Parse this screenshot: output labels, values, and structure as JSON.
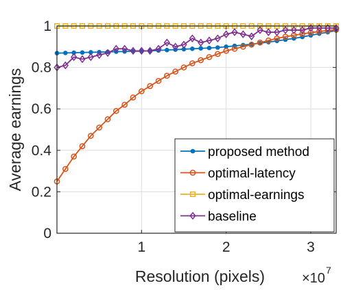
{
  "chart_data": {
    "type": "line",
    "xlabel": "Resolution (pixels)",
    "ylabel": "Average earnings",
    "x_exponent": "×10",
    "x_exponent_power": "7",
    "xlim": [
      0,
      3.3
    ],
    "ylim": [
      0,
      1
    ],
    "xticks": [
      1,
      2,
      3
    ],
    "xtick_labels": [
      "1",
      "2",
      "3"
    ],
    "yticks": [
      0,
      0.2,
      0.4,
      0.6,
      0.8,
      1
    ],
    "ytick_labels": [
      "0",
      "0.2",
      "0.4",
      "0.6",
      "0.8",
      "1"
    ],
    "grid": true,
    "legend_position": "bottom-right",
    "x": [
      0.0,
      0.1,
      0.2,
      0.3,
      0.4,
      0.5,
      0.6,
      0.7,
      0.8,
      0.9,
      1.0,
      1.1,
      1.2,
      1.3,
      1.4,
      1.5,
      1.6,
      1.7,
      1.8,
      1.9,
      2.0,
      2.1,
      2.2,
      2.3,
      2.4,
      2.5,
      2.6,
      2.7,
      2.8,
      2.9,
      3.0,
      3.1,
      3.2,
      3.3
    ],
    "series": [
      {
        "name": "proposed method",
        "color": "#0072BD",
        "marker": "dot",
        "values": [
          0.869,
          0.87,
          0.871,
          0.872,
          0.873,
          0.874,
          0.875,
          0.876,
          0.877,
          0.878,
          0.879,
          0.88,
          0.882,
          0.884,
          0.886,
          0.888,
          0.89,
          0.892,
          0.894,
          0.896,
          0.9,
          0.904,
          0.908,
          0.912,
          0.917,
          0.922,
          0.928,
          0.934,
          0.94,
          0.947,
          0.955,
          0.963,
          0.97,
          0.978
        ]
      },
      {
        "name": "optimal-latency",
        "color": "#D95319",
        "marker": "circle",
        "values": [
          0.25,
          0.31,
          0.37,
          0.42,
          0.47,
          0.51,
          0.55,
          0.59,
          0.62,
          0.655,
          0.685,
          0.71,
          0.735,
          0.76,
          0.78,
          0.8,
          0.82,
          0.835,
          0.85,
          0.865,
          0.88,
          0.89,
          0.9,
          0.91,
          0.92,
          0.93,
          0.94,
          0.948,
          0.955,
          0.962,
          0.968,
          0.973,
          0.978,
          0.982
        ]
      },
      {
        "name": "optimal-earnings",
        "color": "#EDB120",
        "marker": "square",
        "values": [
          1,
          1,
          1,
          1,
          1,
          1,
          1,
          1,
          1,
          1,
          1,
          1,
          1,
          1,
          1,
          1,
          1,
          1,
          1,
          1,
          1,
          1,
          1,
          1,
          1,
          1,
          1,
          1,
          1,
          1,
          1,
          1,
          1,
          1
        ]
      },
      {
        "name": "baseline",
        "color": "#7E2F8E",
        "marker": "diamond",
        "values": [
          0.8,
          0.81,
          0.85,
          0.84,
          0.85,
          0.86,
          0.87,
          0.89,
          0.89,
          0.88,
          0.88,
          0.88,
          0.89,
          0.92,
          0.9,
          0.91,
          0.94,
          0.92,
          0.93,
          0.94,
          0.96,
          0.97,
          0.96,
          0.95,
          0.98,
          0.97,
          0.97,
          0.98,
          0.98,
          0.98,
          0.99,
          0.99,
          0.99,
          0.99
        ]
      }
    ]
  }
}
